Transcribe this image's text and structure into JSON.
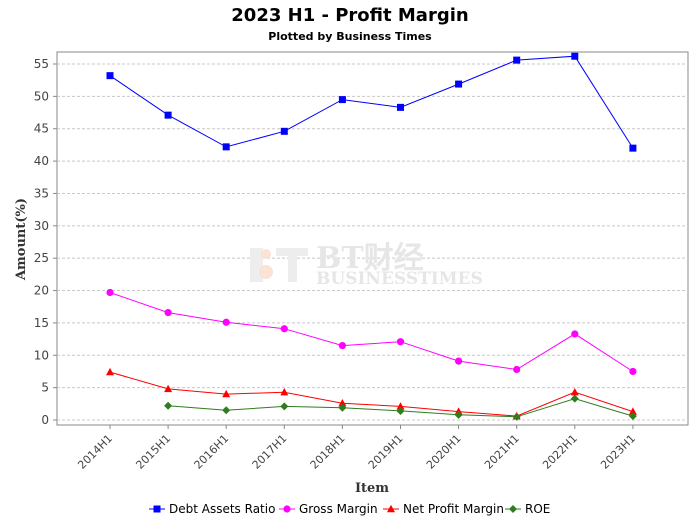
{
  "chart_data": {
    "type": "line",
    "title": "2023 H1 - Profit Margin",
    "subtitle": "Plotted by Business Times",
    "xlabel": "Item",
    "ylabel": "Amount(%)",
    "ylim": [
      0,
      58
    ],
    "yticks": [
      0,
      5,
      10,
      15,
      20,
      25,
      30,
      35,
      40,
      45,
      50,
      55
    ],
    "grid": true,
    "legend_position": "bottom",
    "categories": [
      "2014H1",
      "2015H1",
      "2016H1",
      "2017H1",
      "2018H1",
      "2019H1",
      "2020H1",
      "2021H1",
      "2022H1",
      "2023H1"
    ],
    "series": [
      {
        "name": "Debt Assets Ratio",
        "color": "#0000ff",
        "marker": "square",
        "values": [
          53.2,
          47.1,
          42.2,
          44.6,
          49.5,
          48.3,
          51.9,
          55.6,
          56.2,
          42.0
        ]
      },
      {
        "name": "Gross Margin",
        "color": "#ff00ff",
        "marker": "circle",
        "values": [
          19.7,
          16.6,
          15.1,
          14.1,
          11.5,
          12.1,
          9.1,
          7.8,
          13.3,
          7.5
        ]
      },
      {
        "name": "Net Profit Margin",
        "color": "#ff0000",
        "marker": "triangle",
        "values": [
          7.4,
          4.8,
          4.0,
          4.3,
          2.6,
          2.1,
          1.3,
          0.6,
          4.3,
          1.3
        ]
      },
      {
        "name": "ROE",
        "color": "#2e7d1e",
        "marker": "diamond",
        "values": [
          null,
          2.2,
          1.5,
          2.1,
          1.9,
          1.4,
          0.8,
          0.5,
          3.3,
          0.6
        ]
      }
    ]
  },
  "watermark": {
    "logo_text": "BT财经",
    "brand_text": "BUSINESSTIMES"
  }
}
